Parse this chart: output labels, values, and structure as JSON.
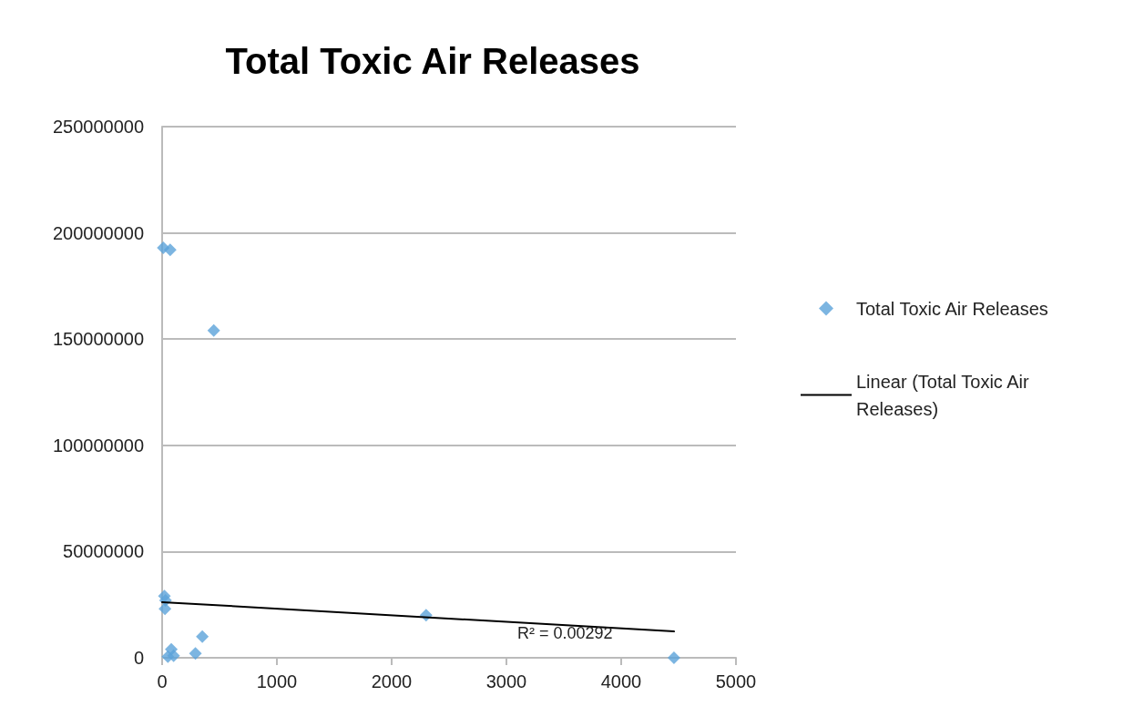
{
  "chart_data": {
    "type": "scatter",
    "title": "Total Toxic Air Releases",
    "series": [
      {
        "name": "Total Toxic Air Releases",
        "color": "#5ba3d9",
        "x": [
          10,
          70,
          450,
          20,
          30,
          25,
          2300,
          350,
          290,
          50,
          80,
          100,
          4460
        ],
        "values": [
          193000000,
          192000000,
          154000000,
          29000000,
          27000000,
          23000000,
          20000000,
          10000000,
          2000000,
          500000,
          4000000,
          1000000,
          0
        ]
      },
      {
        "name": "Linear (Total Toxic Air Releases)",
        "type": "line",
        "color": "#000000",
        "marker": "none",
        "x": [
          0,
          4460
        ],
        "values": [
          26200000,
          12400000
        ]
      }
    ],
    "annotations": [
      "R² = 0.00292"
    ],
    "xlim": [
      0,
      5000
    ],
    "xticks": [
      0,
      1000,
      2000,
      3000,
      4000,
      5000
    ],
    "ylim": [
      0,
      250000000
    ],
    "yticks": [
      0,
      50000000,
      100000000,
      150000000,
      200000000,
      250000000
    ],
    "grid": "y",
    "legend": "right",
    "marker": "diamond"
  }
}
